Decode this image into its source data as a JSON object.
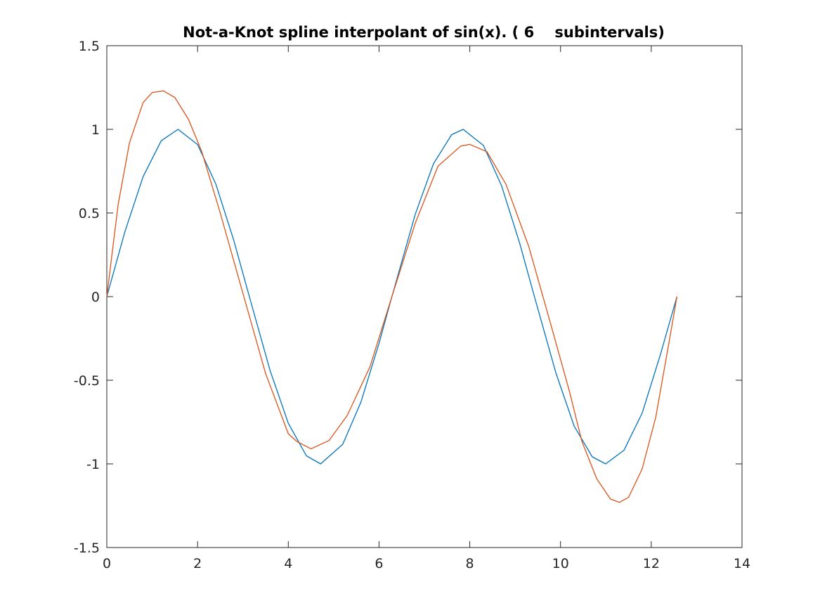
{
  "chart_data": {
    "type": "line",
    "title": "Not-a-Knot spline interpolant of sin(x). ( 6    subintervals)",
    "xlabel": "",
    "ylabel": "",
    "xlim": [
      0,
      14
    ],
    "ylim": [
      -1.5,
      1.5
    ],
    "xticks": [
      0,
      2,
      4,
      6,
      8,
      10,
      12,
      14
    ],
    "xtick_labels": [
      "0",
      "2",
      "4",
      "6",
      "8",
      "10",
      "12",
      "14"
    ],
    "yticks": [
      -1.5,
      -1,
      -0.5,
      0,
      0.5,
      1,
      1.5
    ],
    "ytick_labels": [
      "-1.5",
      "-1",
      "-0.5",
      "0",
      "0.5",
      "1",
      "1.5"
    ],
    "grid": false,
    "series": [
      {
        "color": "#0072bd",
        "x": [
          0,
          0.4,
          0.8,
          1.2,
          1.5708,
          2.0,
          2.4,
          2.8,
          3.1416,
          3.6,
          4.0,
          4.4,
          4.7124,
          5.2,
          5.6,
          6.0,
          6.2832,
          6.8,
          7.2,
          7.6,
          7.854,
          8.3,
          8.7,
          9.1,
          9.4248,
          9.9,
          10.3,
          10.7,
          10.9956,
          11.4,
          11.8,
          12.2,
          12.5664
        ],
        "y": [
          0,
          0.389,
          0.717,
          0.932,
          1.0,
          0.909,
          0.675,
          0.335,
          0,
          -0.443,
          -0.757,
          -0.952,
          -1.0,
          -0.883,
          -0.631,
          -0.279,
          0,
          0.494,
          0.794,
          0.968,
          1.0,
          0.904,
          0.663,
          0.319,
          0,
          -0.458,
          -0.774,
          -0.958,
          -1.0,
          -0.918,
          -0.696,
          -0.348,
          0
        ]
      },
      {
        "color": "#d95319",
        "x": [
          0,
          0.25,
          0.5,
          0.8,
          1.0,
          1.25,
          1.5,
          1.8,
          2.094,
          2.5,
          3.0,
          3.5,
          4.0,
          4.189,
          4.5,
          4.9,
          5.3,
          5.8,
          6.283,
          6.8,
          7.3,
          7.8,
          8.0,
          8.378,
          8.8,
          9.3,
          9.8,
          10.2,
          10.472,
          10.8,
          11.1,
          11.3,
          11.5,
          11.8,
          12.1,
          12.4,
          12.566
        ],
        "y": [
          0,
          0.55,
          0.92,
          1.16,
          1.22,
          1.23,
          1.19,
          1.06,
          0.866,
          0.5,
          0.02,
          -0.46,
          -0.82,
          -0.866,
          -0.91,
          -0.86,
          -0.71,
          -0.42,
          0,
          0.44,
          0.78,
          0.9,
          0.91,
          0.866,
          0.67,
          0.3,
          -0.18,
          -0.57,
          -0.866,
          -1.09,
          -1.21,
          -1.23,
          -1.2,
          -1.03,
          -0.72,
          -0.26,
          0
        ]
      }
    ]
  }
}
